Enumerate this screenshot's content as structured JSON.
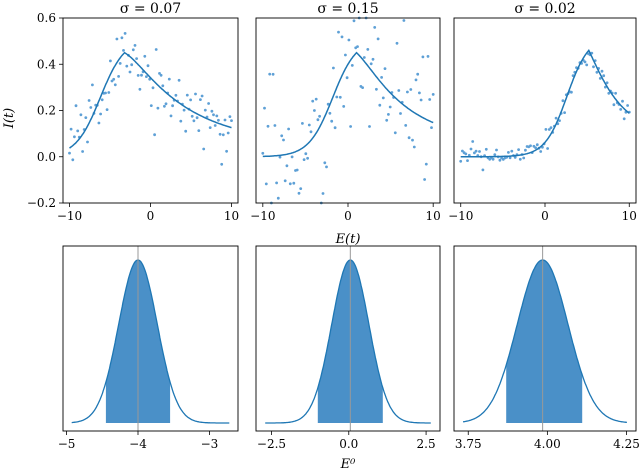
{
  "colors": {
    "line": "#1f77b4",
    "point": "#5ea0d6",
    "fill": "#4a90c8",
    "vline": "#999999",
    "axes": "#000000"
  },
  "shared": {
    "xlabel_top": "E(t)",
    "ylabel_top": "I(t)",
    "xlabel_bottom": "E⁰"
  },
  "chart_data": [
    {
      "type": "scatter",
      "title": "σ = 0.07",
      "xlim": [
        -10.8,
        10.8
      ],
      "ylim": [
        -0.2,
        0.6
      ],
      "xticks": [
        -10,
        0,
        10
      ],
      "yticks": [
        -0.2,
        0.0,
        0.2,
        0.4,
        0.6
      ],
      "x_tick_labels": [
        "−10",
        "0",
        "10"
      ],
      "y_tick_labels": [
        "−0.2",
        "0.0",
        "0.2",
        "0.4",
        "0.6"
      ],
      "curve": {
        "baseline": 0.0,
        "peak_x": -3.2,
        "peak_y": 0.45,
        "rise_width": 1.5,
        "decay_scale": 16,
        "tail_level": 0.1
      },
      "noise_sigma": 0.07
    },
    {
      "type": "scatter",
      "title": "σ = 0.15",
      "xlim": [
        -10.8,
        10.8
      ],
      "ylim": [
        -0.2,
        0.6
      ],
      "xticks": [
        -10,
        0,
        10
      ],
      "yticks": [],
      "x_tick_labels": [
        "−10",
        "0",
        "10"
      ],
      "y_tick_labels": [],
      "curve": {
        "baseline": 0.0,
        "peak_x": 1.0,
        "peak_y": 0.45,
        "rise_width": 1.4,
        "decay_scale": 12,
        "tail_level": 0.12
      },
      "noise_sigma": 0.15
    },
    {
      "type": "scatter",
      "title": "σ = 0.02",
      "xlim": [
        -10.8,
        10.8
      ],
      "ylim": [
        -0.2,
        0.6
      ],
      "xticks": [
        -10,
        0,
        10
      ],
      "yticks": [],
      "x_tick_labels": [
        "−10",
        "0",
        "10"
      ],
      "y_tick_labels": [],
      "curve": {
        "baseline": 0.0,
        "peak_x": 5.2,
        "peak_y": 0.46,
        "rise_width": 1.3,
        "decay_scale": 7,
        "tail_level": 0.18
      },
      "noise_sigma": 0.02
    },
    {
      "type": "area",
      "mean": -4.0,
      "sd": 0.27,
      "xlim": [
        -5.05,
        -2.6
      ],
      "band": [
        -4.45,
        -3.55
      ],
      "xticks": [
        -5,
        -4,
        -3
      ],
      "x_tick_labels": [
        "−5",
        "−4",
        "−3"
      ]
    },
    {
      "type": "area",
      "mean": 0.05,
      "sd": 0.6,
      "xlim": [
        -3.0,
        2.95
      ],
      "band": [
        -1.0,
        1.1
      ],
      "xticks": [
        -2.5,
        0.0,
        2.5
      ],
      "x_tick_labels": [
        "−2.5",
        "0.0",
        "2.5"
      ]
    },
    {
      "type": "area",
      "mean": 3.985,
      "sd": 0.08,
      "xlim": [
        3.705,
        4.28
      ],
      "band": [
        3.87,
        4.11
      ],
      "xticks": [
        3.75,
        4.0,
        4.25
      ],
      "x_tick_labels": [
        "3.75",
        "4.00",
        "4.25"
      ]
    }
  ]
}
